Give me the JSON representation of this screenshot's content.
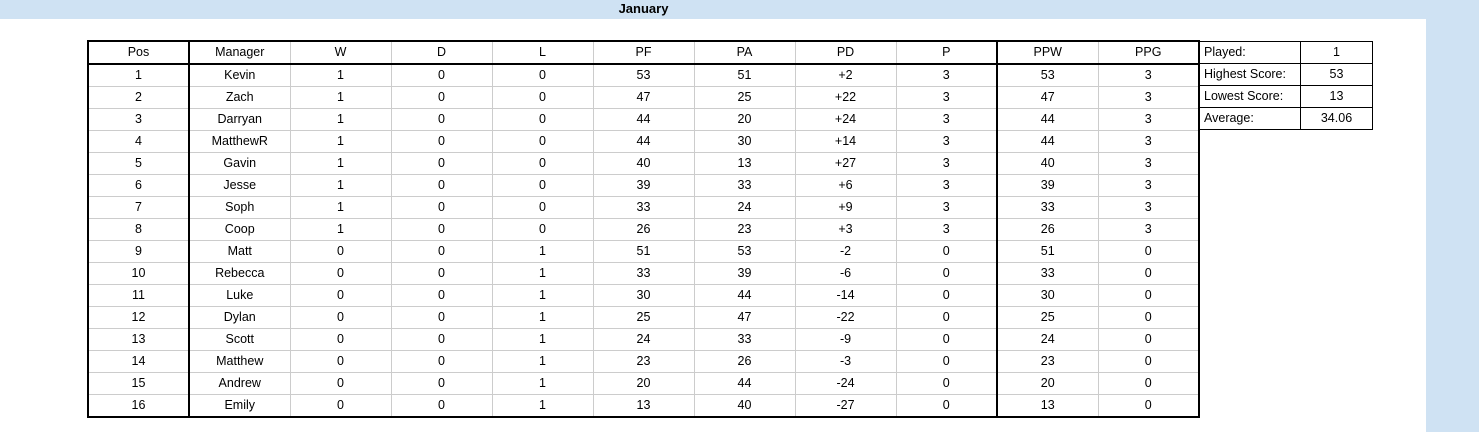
{
  "sheet": {
    "title": "January"
  },
  "league": {
    "headers": [
      "Pos",
      "Manager",
      "W",
      "D",
      "L",
      "PF",
      "PA",
      "PD",
      "P",
      "PPW",
      "PPG"
    ],
    "rows": [
      [
        "1",
        "Kevin",
        "1",
        "0",
        "0",
        "53",
        "51",
        "+2",
        "3",
        "53",
        "3"
      ],
      [
        "2",
        "Zach",
        "1",
        "0",
        "0",
        "47",
        "25",
        "+22",
        "3",
        "47",
        "3"
      ],
      [
        "3",
        "Darryan",
        "1",
        "0",
        "0",
        "44",
        "20",
        "+24",
        "3",
        "44",
        "3"
      ],
      [
        "4",
        "MatthewR",
        "1",
        "0",
        "0",
        "44",
        "30",
        "+14",
        "3",
        "44",
        "3"
      ],
      [
        "5",
        "Gavin",
        "1",
        "0",
        "0",
        "40",
        "13",
        "+27",
        "3",
        "40",
        "3"
      ],
      [
        "6",
        "Jesse",
        "1",
        "0",
        "0",
        "39",
        "33",
        "+6",
        "3",
        "39",
        "3"
      ],
      [
        "7",
        "Soph",
        "1",
        "0",
        "0",
        "33",
        "24",
        "+9",
        "3",
        "33",
        "3"
      ],
      [
        "8",
        "Coop",
        "1",
        "0",
        "0",
        "26",
        "23",
        "+3",
        "3",
        "26",
        "3"
      ],
      [
        "9",
        "Matt",
        "0",
        "0",
        "1",
        "51",
        "53",
        "-2",
        "0",
        "51",
        "0"
      ],
      [
        "10",
        "Rebecca",
        "0",
        "0",
        "1",
        "33",
        "39",
        "-6",
        "0",
        "33",
        "0"
      ],
      [
        "11",
        "Luke",
        "0",
        "0",
        "1",
        "30",
        "44",
        "-14",
        "0",
        "30",
        "0"
      ],
      [
        "12",
        "Dylan",
        "0",
        "0",
        "1",
        "25",
        "47",
        "-22",
        "0",
        "25",
        "0"
      ],
      [
        "13",
        "Scott",
        "0",
        "0",
        "1",
        "24",
        "33",
        "-9",
        "0",
        "24",
        "0"
      ],
      [
        "14",
        "Matthew",
        "0",
        "0",
        "1",
        "23",
        "26",
        "-3",
        "0",
        "23",
        "0"
      ],
      [
        "15",
        "Andrew",
        "0",
        "0",
        "1",
        "20",
        "44",
        "-24",
        "0",
        "20",
        "0"
      ],
      [
        "16",
        "Emily",
        "0",
        "0",
        "1",
        "13",
        "40",
        "-27",
        "0",
        "13",
        "0"
      ]
    ]
  },
  "stats": [
    {
      "label": "Played:",
      "value": "1"
    },
    {
      "label": "Highest Score:",
      "value": "53"
    },
    {
      "label": "Lowest Score:",
      "value": "13"
    },
    {
      "label": "Average:",
      "value": "34.06"
    }
  ],
  "colors": {
    "header_fill": "#cfe2f3",
    "grid": "#cccccc",
    "border": "#000000"
  }
}
